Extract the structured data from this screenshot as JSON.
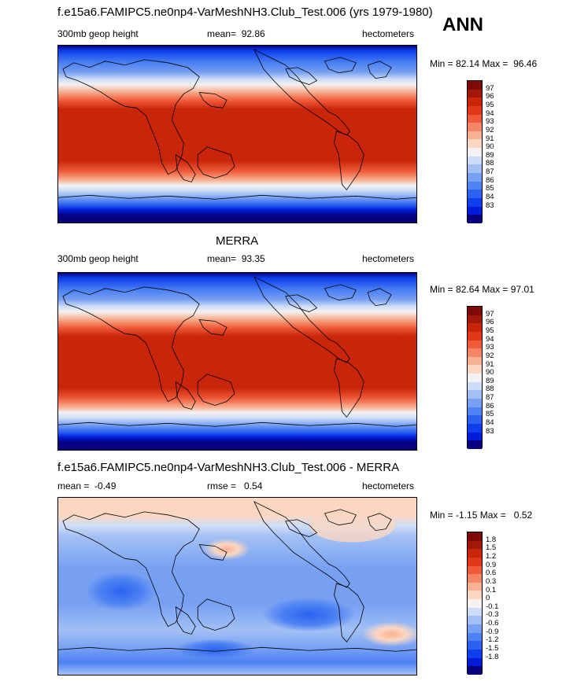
{
  "header": {
    "title": "f.e15a6.FAMIPC5.ne0np4-VarMeshNH3.Club_Test.006 (yrs 1979-1980)",
    "season": "ANN"
  },
  "colors": {
    "abs_scale": [
      "#08007f",
      "#001bd9",
      "#0d3fee",
      "#2b62f2",
      "#4d82f3",
      "#77a0f3",
      "#a3c0f5",
      "#cddcf8",
      "#f2f2f2",
      "#fbd7c2",
      "#f8b192",
      "#f58564",
      "#f05a3a",
      "#e2381a",
      "#c8250a",
      "#a3170a",
      "#7d0a05"
    ],
    "diff_scale": [
      "#08007f",
      "#001bd9",
      "#0d3fee",
      "#2b62f2",
      "#4d82f3",
      "#77a0f3",
      "#a3c0f5",
      "#cddcf8",
      "#f7f2ee",
      "#fbd7c2",
      "#f8b192",
      "#f58564",
      "#f05a3a",
      "#e2381a",
      "#c8250a",
      "#a3170a",
      "#7d0a05"
    ]
  },
  "chart_data": [
    {
      "type": "heatmap",
      "title": "f.e15a6.FAMIPC5.ne0np4-VarMeshNH3.Club_Test.006 (yrs 1979-1980)",
      "variable": "300mb geop height",
      "mean_label": "mean=",
      "mean": "92.86",
      "units": "hectometers",
      "min_label": "Min =",
      "min": "82.14",
      "max_label": "Max =",
      "max": "96.46",
      "levels": [
        "97",
        "96",
        "95",
        "94",
        "93",
        "92",
        "91",
        "90",
        "89",
        "88",
        "87",
        "86",
        "85",
        "84",
        "83"
      ]
    },
    {
      "type": "heatmap",
      "title": "MERRA",
      "variable": "300mb geop height",
      "mean_label": "mean=",
      "mean": "93.35",
      "units": "hectometers",
      "min_label": "Min =",
      "min": "82.64",
      "max_label": "Max =",
      "max": "97.01",
      "levels": [
        "97",
        "96",
        "95",
        "94",
        "93",
        "92",
        "91",
        "90",
        "89",
        "88",
        "87",
        "86",
        "85",
        "84",
        "83"
      ]
    },
    {
      "type": "heatmap",
      "title": "f.e15a6.FAMIPC5.ne0np4-VarMeshNH3.Club_Test.006 - MERRA",
      "mean_label": "mean =",
      "mean": "-0.49",
      "rmse_label": "rmse =",
      "rmse": "0.54",
      "units": "hectometers",
      "min_label": "Min =",
      "min": "-1.15",
      "max_label": "Max =",
      "max": "0.52",
      "levels": [
        "1.8",
        "1.5",
        "1.2",
        "0.9",
        "0.6",
        "0.3",
        "0.1",
        "0",
        "-0.1",
        "-0.3",
        "-0.6",
        "-0.9",
        "-1.2",
        "-1.5",
        "-1.8"
      ]
    }
  ]
}
